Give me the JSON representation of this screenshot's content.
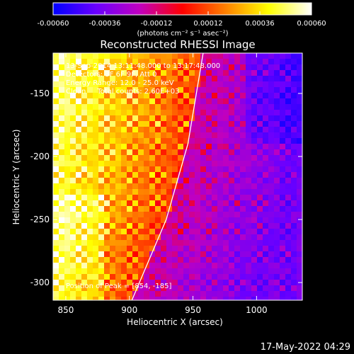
{
  "chart_data": {
    "type": "heatmap",
    "title": "Reconstructed RHESSI Image",
    "xlabel": "Heliocentric X (arcsec)",
    "ylabel": "Heliocentric Y (arcsec)",
    "xlim": [
      840,
      1036
    ],
    "ylim": [
      -314,
      -118
    ],
    "x_ticks": [
      "850",
      "900",
      "950",
      "1000"
    ],
    "x_tick_values": [
      850,
      900,
      950,
      1000
    ],
    "y_ticks": [
      "-150",
      "-200",
      "-250",
      "-300"
    ],
    "y_tick_values": [
      -150,
      -200,
      -250,
      -300
    ],
    "colorbar": {
      "range": [
        -0.0006,
        0.0006
      ],
      "tick_labels": [
        "-0.00060",
        "-0.00036",
        "-0.00012",
        "0.00012",
        "0.00036",
        "0.00060"
      ],
      "tick_values": [
        -0.0006,
        -0.00036,
        -0.00012,
        0.00012,
        0.00036,
        0.0006
      ],
      "unit_label": "(photons cm⁻² s⁻¹ asec⁻²)",
      "colormap": [
        "#0000ff",
        "#6a00ff",
        "#c000c0",
        "#ff0000",
        "#ff8000",
        "#ffff00",
        "#ffffff"
      ]
    },
    "annotations": {
      "time_range": "13-Sep-2014 13:11:48.000 to 13:17:48.000",
      "detectors": "Detectors: 3F 6F 9F, Att 0",
      "energy": "Energy Range: 12.0 - 25.0 keV",
      "method": "Clean     Total counts: 2.60E+03",
      "peak": "Position of Peak = [854, -185]"
    },
    "limb": [
      [
        902,
        -314
      ],
      [
        929,
        -250
      ],
      [
        946,
        -190
      ],
      [
        958,
        -118
      ]
    ],
    "grid": false
  },
  "footer": {
    "timestamp": "17-May-2022 04:29"
  }
}
